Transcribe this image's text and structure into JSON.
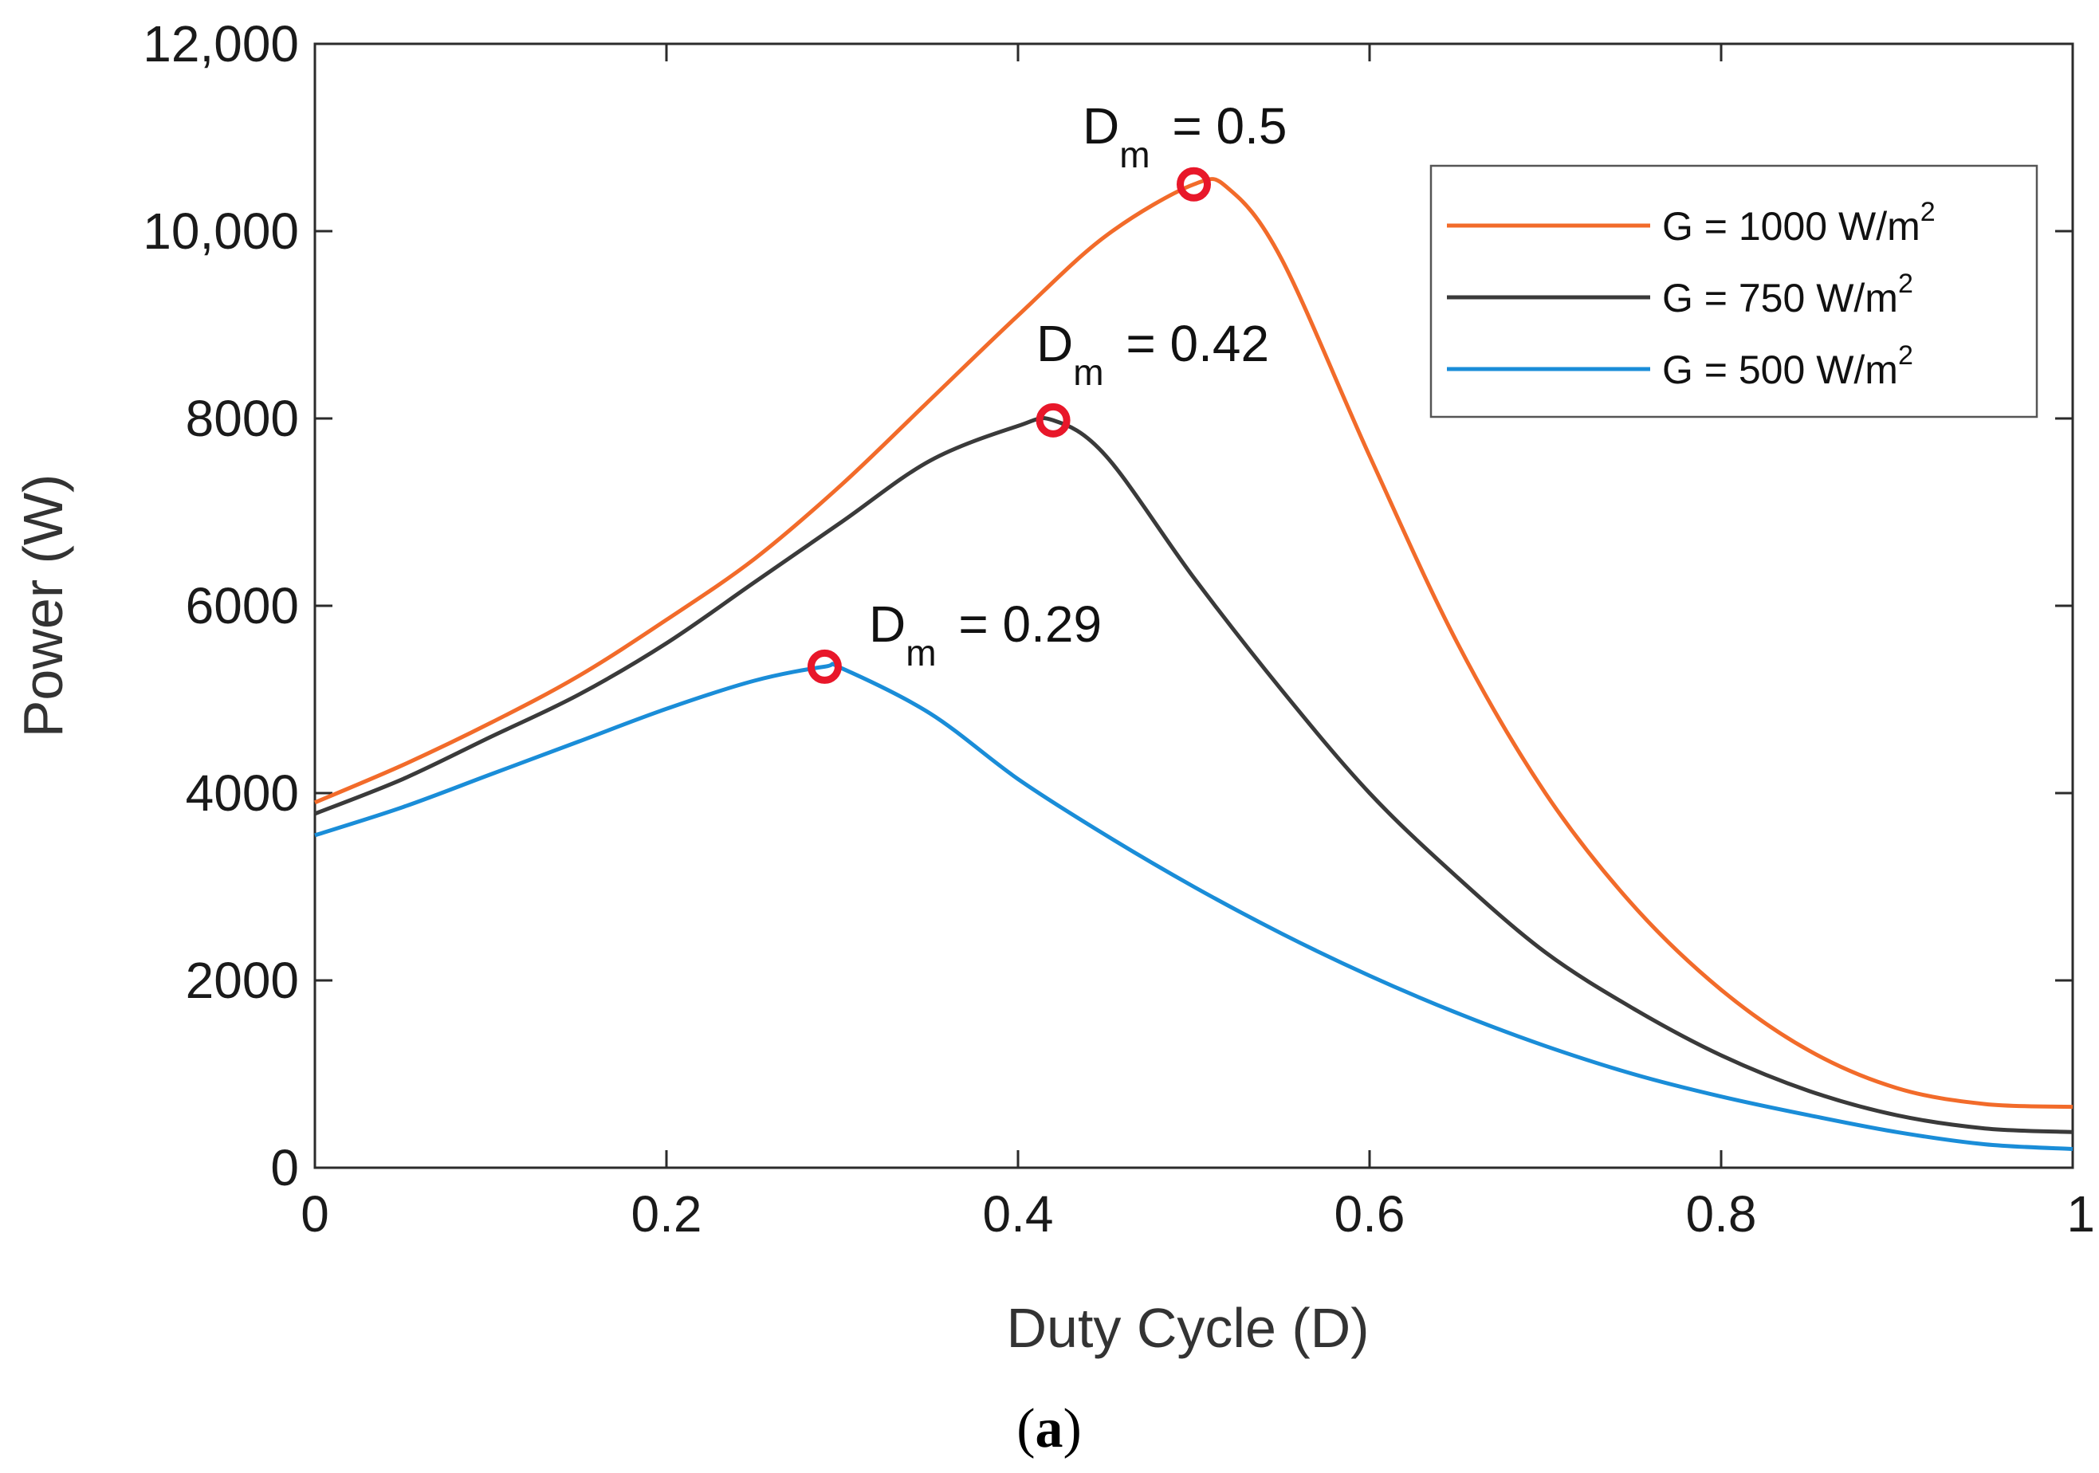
{
  "chart_data": {
    "type": "line",
    "title": "",
    "xlabel": "Duty Cycle (D)",
    "ylabel": "Power (W)",
    "xlim": [
      0,
      1
    ],
    "ylim": [
      0,
      12000
    ],
    "grid": false,
    "legend_position": "top-right",
    "x_ticks": [
      0,
      0.2,
      0.4,
      0.6,
      0.8,
      1
    ],
    "x_tick_labels": [
      "0",
      "0.2",
      "0.4",
      "0.6",
      "0.8",
      "1"
    ],
    "y_ticks": [
      0,
      2000,
      4000,
      6000,
      8000,
      10000,
      12000
    ],
    "y_tick_labels": [
      "0",
      "2000",
      "4000",
      "6000",
      "8000",
      "10,000",
      "12,000"
    ],
    "series": [
      {
        "name": "G = 1000 W/m",
        "name_sup": "2",
        "color": "#F26B2A",
        "x": [
          0,
          0.05,
          0.1,
          0.15,
          0.2,
          0.25,
          0.3,
          0.35,
          0.4,
          0.45,
          0.5,
          0.52,
          0.55,
          0.6,
          0.65,
          0.7,
          0.75,
          0.8,
          0.85,
          0.9,
          0.95,
          1.0
        ],
        "y": [
          3900,
          4300,
          4750,
          5250,
          5850,
          6500,
          7300,
          8200,
          9100,
          9950,
          10500,
          10450,
          9700,
          7600,
          5600,
          4000,
          2800,
          1900,
          1250,
          850,
          680,
          650
        ]
      },
      {
        "name": "G = 750 W/m",
        "name_sup": "2",
        "color": "#3A3A3A",
        "x": [
          0,
          0.05,
          0.1,
          0.15,
          0.2,
          0.25,
          0.3,
          0.35,
          0.4,
          0.42,
          0.45,
          0.5,
          0.55,
          0.6,
          0.65,
          0.7,
          0.75,
          0.8,
          0.85,
          0.9,
          0.95,
          1.0
        ],
        "y": [
          3780,
          4150,
          4600,
          5050,
          5600,
          6250,
          6900,
          7550,
          7920,
          7980,
          7600,
          6300,
          5100,
          4000,
          3100,
          2300,
          1700,
          1200,
          820,
          560,
          420,
          380
        ]
      },
      {
        "name": "G = 500 W/m",
        "name_sup": "2",
        "color": "#1A8DD8",
        "x": [
          0,
          0.05,
          0.1,
          0.15,
          0.2,
          0.25,
          0.29,
          0.3,
          0.35,
          0.4,
          0.45,
          0.5,
          0.55,
          0.6,
          0.65,
          0.7,
          0.75,
          0.8,
          0.85,
          0.9,
          0.95,
          1.0
        ],
        "y": [
          3550,
          3850,
          4200,
          4550,
          4900,
          5200,
          5350,
          5330,
          4850,
          4150,
          3550,
          3000,
          2500,
          2050,
          1650,
          1300,
          1000,
          760,
          560,
          380,
          250,
          200
        ]
      }
    ],
    "markers": [
      {
        "x": 0.5,
        "y": 10500,
        "label_main": "D",
        "label_sub": "m",
        "label_rest": " = 0.5"
      },
      {
        "x": 0.42,
        "y": 7980,
        "label_main": "D",
        "label_sub": "m",
        "label_rest": " = 0.42"
      },
      {
        "x": 0.29,
        "y": 5350,
        "label_main": "D",
        "label_sub": "m",
        "label_rest": " = 0.29"
      }
    ],
    "marker_color": "#E8172A",
    "caption": "(a)",
    "caption_open": "(",
    "caption_letter": "a",
    "caption_close": ")"
  }
}
